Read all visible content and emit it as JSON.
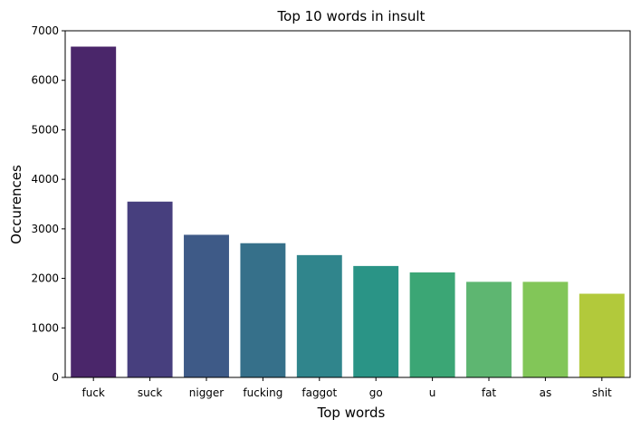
{
  "chart_data": {
    "type": "bar",
    "title": "Top 10 words in insult",
    "xlabel": "Top words",
    "ylabel": "Occurences",
    "categories": [
      "fuck",
      "suck",
      "nigger",
      "fucking",
      "faggot",
      "go",
      "u",
      "fat",
      "as",
      "shit"
    ],
    "values": [
      6680,
      3550,
      2880,
      2710,
      2470,
      2250,
      2120,
      1930,
      1930,
      1690
    ],
    "colors": [
      "#4a266a",
      "#473f7e",
      "#3e5a87",
      "#36708a",
      "#30858c",
      "#2a9486",
      "#3ba675",
      "#5eb671",
      "#82c658",
      "#b2c93b"
    ],
    "ylim": [
      0,
      7000
    ],
    "yticks": [
      0,
      1000,
      2000,
      3000,
      4000,
      5000,
      6000,
      7000
    ],
    "grid": false,
    "legend": "none"
  }
}
